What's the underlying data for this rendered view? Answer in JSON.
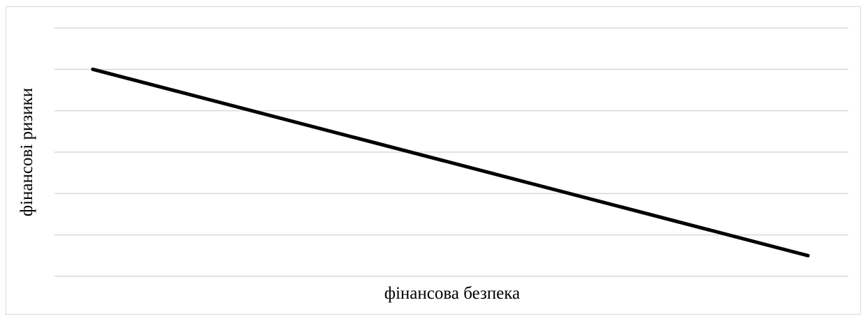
{
  "chart_data": {
    "type": "line",
    "title": "",
    "xlabel": "фінансова безпека",
    "ylabel": "фінансові ризики",
    "x": [
      0,
      1
    ],
    "series": [
      {
        "values": [
          5,
          0.5
        ]
      }
    ],
    "ylim": [
      0,
      6
    ],
    "grid": true,
    "legend": "none",
    "colors": {
      "series": "#000000",
      "grid": "#d9d9d9",
      "border": "#d9d9d9"
    }
  }
}
